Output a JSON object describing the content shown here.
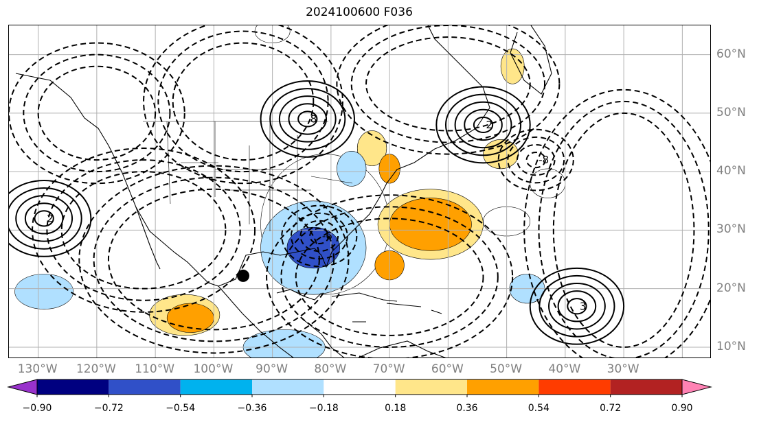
{
  "title": "2024100600 F036",
  "lon_labels": [
    "130°W",
    "120°W",
    "110°W",
    "100°W",
    "90°W",
    "80°W",
    "70°W",
    "60°W",
    "50°W",
    "40°W",
    "30°W"
  ],
  "lat_labels": [
    "60°N",
    "50°N",
    "40°N",
    "30°N",
    "20°N",
    "10°N"
  ],
  "map": {
    "lon_range": [
      -135,
      -15
    ],
    "lat_range": [
      8,
      65
    ],
    "gridline_color": "#b0b0b0",
    "contour_color": "#000000"
  },
  "colorbar": {
    "tick_labels": [
      "−0.90",
      "−0.72",
      "−0.54",
      "−0.36",
      "−0.18",
      "0.18",
      "0.36",
      "0.54",
      "0.72",
      "0.90"
    ],
    "under_color": "#9932cc",
    "over_color": "#ff82b4",
    "bin_colors": [
      "#000080",
      "#3050c8",
      "#00b2ee",
      "#b0e0ff",
      "#ffffff",
      "#ffe68a",
      "#ffa000",
      "#ff3c00",
      "#b22222"
    ]
  },
  "shaded_regions": [
    {
      "lon": -83,
      "lat": 27,
      "rx": 4.5,
      "ry": 3.5,
      "level": -0.72
    },
    {
      "lon": -83,
      "lat": 27,
      "rx": 9,
      "ry": 8,
      "level": -0.36
    },
    {
      "lon": -81,
      "lat": 31,
      "rx": 11,
      "ry": 12,
      "level": -0.18
    },
    {
      "lon": -63,
      "lat": 31,
      "rx": 7,
      "ry": 4.5,
      "level": 0.36
    },
    {
      "lon": -63,
      "lat": 31,
      "rx": 9,
      "ry": 6,
      "level": 0.18
    },
    {
      "lon": -104,
      "lat": 15,
      "rx": 4,
      "ry": 2.5,
      "level": 0.36
    },
    {
      "lon": -105,
      "lat": 15.5,
      "rx": 6,
      "ry": 3.5,
      "level": 0.18
    },
    {
      "lon": -70,
      "lat": 40.5,
      "rx": 1.8,
      "ry": 2.5,
      "level": 0.36
    },
    {
      "lon": -73,
      "lat": 44,
      "rx": 2.5,
      "ry": 3,
      "level": 0.18
    },
    {
      "lon": -49,
      "lat": 58,
      "rx": 2,
      "ry": 3,
      "level": 0.18
    },
    {
      "lon": -51,
      "lat": 43,
      "rx": 3,
      "ry": 2.5,
      "level": 0.18
    },
    {
      "lon": -70,
      "lat": 24,
      "rx": 2.5,
      "ry": 2.5,
      "level": 0.36
    },
    {
      "lon": -129,
      "lat": 19.5,
      "rx": 5,
      "ry": 3,
      "level": -0.36
    },
    {
      "lon": -46.5,
      "lat": 20,
      "rx": 3,
      "ry": 2.5,
      "level": -0.36
    },
    {
      "lon": -50,
      "lat": 31.5,
      "rx": 4,
      "ry": 2.5,
      "level": -0.18
    },
    {
      "lon": -43,
      "lat": 38,
      "rx": 3,
      "ry": 2.5,
      "level": -0.18
    },
    {
      "lon": -88,
      "lat": 10,
      "rx": 7,
      "ry": 3,
      "level": -0.36
    },
    {
      "lon": -76.5,
      "lat": 40.5,
      "rx": 2.5,
      "ry": 3,
      "level": -0.36
    },
    {
      "lon": -90,
      "lat": 64,
      "rx": 3,
      "ry": 2,
      "level": -0.18
    }
  ],
  "contour_lows": [
    {
      "lon": -82,
      "lat": 29,
      "label": "-6"
    },
    {
      "lon": -45,
      "lat": 42,
      "label": "-8"
    }
  ],
  "contour_highs": [
    {
      "lon": -84,
      "lat": 49,
      "label": "8"
    },
    {
      "lon": -54,
      "lat": 48,
      "label": "2"
    },
    {
      "lon": -129,
      "lat": 32,
      "label": "2"
    },
    {
      "lon": -38,
      "lat": 17,
      "label": "3"
    }
  ],
  "marker": {
    "lon": -95,
    "lat": 22.2
  }
}
